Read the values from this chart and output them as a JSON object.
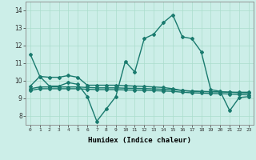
{
  "title": "",
  "xlabel": "Humidex (Indice chaleur)",
  "background_color": "#cceee8",
  "grid_color": "#aaddcc",
  "line_color": "#1a7a6e",
  "xlim": [
    -0.5,
    23.5
  ],
  "ylim": [
    7.5,
    14.5
  ],
  "yticks": [
    8,
    9,
    10,
    11,
    12,
    13,
    14
  ],
  "xticks": [
    0,
    1,
    2,
    3,
    4,
    5,
    6,
    7,
    8,
    9,
    10,
    11,
    12,
    13,
    14,
    15,
    16,
    17,
    18,
    19,
    20,
    21,
    22,
    23
  ],
  "series": [
    {
      "x": [
        0,
        1,
        2,
        3,
        4,
        5,
        6,
        7,
        8,
        9,
        10,
        11,
        12,
        13,
        14,
        15,
        16,
        17,
        18,
        19,
        20,
        21,
        22,
        23
      ],
      "y": [
        11.5,
        10.25,
        9.7,
        9.7,
        9.9,
        9.8,
        9.1,
        7.7,
        8.4,
        9.1,
        11.1,
        10.5,
        12.4,
        12.65,
        13.3,
        13.75,
        12.5,
        12.4,
        11.65,
        9.5,
        9.4,
        8.3,
        9.05,
        9.1
      ]
    },
    {
      "x": [
        0,
        1,
        2,
        3,
        4,
        5,
        6,
        7,
        8,
        9,
        10,
        11,
        12,
        13,
        14,
        15,
        16,
        17,
        18,
        19,
        20,
        21,
        22,
        23
      ],
      "y": [
        9.7,
        10.25,
        10.2,
        10.2,
        10.3,
        10.2,
        9.75,
        9.75,
        9.75,
        9.75,
        9.72,
        9.7,
        9.68,
        9.65,
        9.62,
        9.55,
        9.45,
        9.4,
        9.38,
        9.38,
        9.38,
        9.35,
        9.35,
        9.35
      ]
    },
    {
      "x": [
        0,
        1,
        2,
        3,
        4,
        5,
        6,
        7,
        8,
        9,
        10,
        11,
        12,
        13,
        14,
        15,
        16,
        17,
        18,
        19,
        20,
        21,
        22,
        23
      ],
      "y": [
        9.55,
        9.65,
        9.65,
        9.65,
        9.65,
        9.65,
        9.62,
        9.6,
        9.6,
        9.6,
        9.58,
        9.57,
        9.56,
        9.54,
        9.52,
        9.5,
        9.45,
        9.42,
        9.4,
        9.38,
        9.37,
        9.35,
        9.32,
        9.3
      ]
    },
    {
      "x": [
        0,
        1,
        2,
        3,
        4,
        5,
        6,
        7,
        8,
        9,
        10,
        11,
        12,
        13,
        14,
        15,
        16,
        17,
        18,
        19,
        20,
        21,
        22,
        23
      ],
      "y": [
        9.45,
        9.55,
        9.55,
        9.55,
        9.55,
        9.55,
        9.52,
        9.5,
        9.5,
        9.5,
        9.48,
        9.47,
        9.46,
        9.44,
        9.42,
        9.4,
        9.35,
        9.32,
        9.3,
        9.28,
        9.27,
        9.25,
        9.22,
        9.2
      ]
    }
  ],
  "marker_style": "D",
  "marker_size": 2,
  "line_width": 1.0
}
